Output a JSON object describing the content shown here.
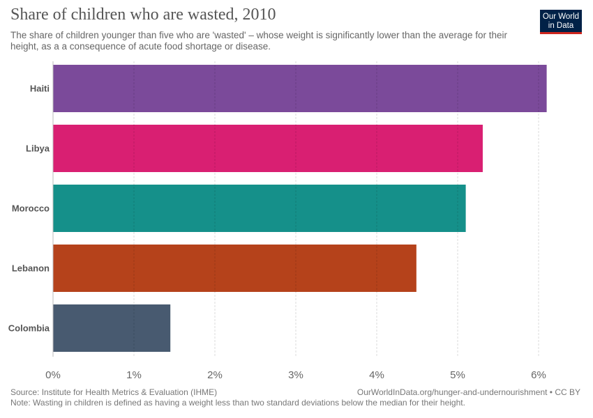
{
  "header": {
    "title": "Share of children who are wasted, 2010",
    "subtitle": "The share of children younger than five who are 'wasted' – whose weight is significantly lower than the average for their height, as a a consequence of acute food shortage or disease.",
    "logo_line1": "Our World",
    "logo_line2": "in Data"
  },
  "footer": {
    "source": "Source: Institute for Health Metrics & Evaluation (IHME)",
    "url": "OurWorldInData.org/hunger-and-undernourishment • CC BY",
    "note": "Note: Wasting in children is defined as having a weight less than two standard deviations below the median for their height."
  },
  "chart_data": {
    "type": "bar",
    "orientation": "horizontal",
    "categories": [
      "Haiti",
      "Libya",
      "Morocco",
      "Lebanon",
      "Colombia"
    ],
    "values": [
      6.1,
      5.31,
      5.1,
      4.49,
      1.45
    ],
    "unit": "%",
    "colors": [
      "#7b4a9a",
      "#d91f72",
      "#15908a",
      "#b5421b",
      "#485a70"
    ],
    "xlim": [
      0,
      6
    ],
    "xticks": [
      "0%",
      "1%",
      "2%",
      "3%",
      "4%",
      "5%",
      "6%"
    ],
    "grid": true
  }
}
